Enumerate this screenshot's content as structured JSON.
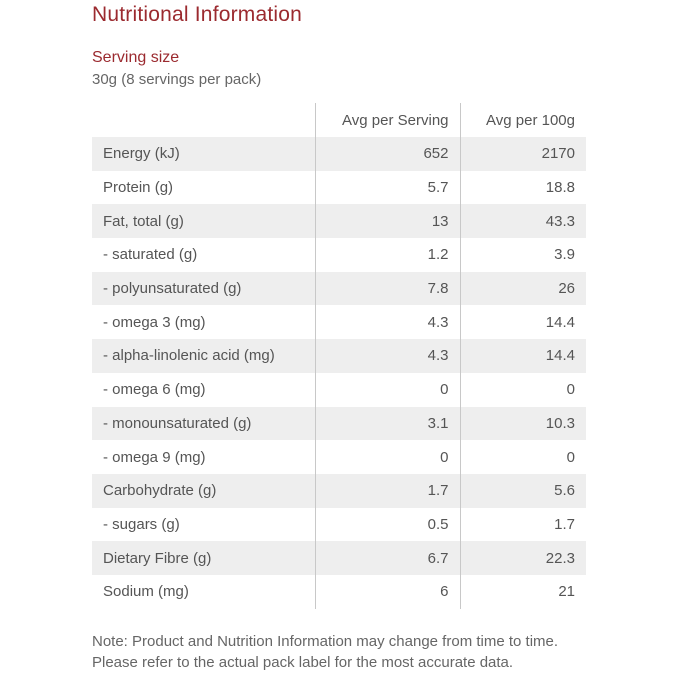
{
  "title": "Nutritional Information",
  "serving": {
    "heading": "Serving size",
    "value": "30g (8 servings per pack)"
  },
  "table": {
    "headers": [
      "",
      "Avg per Serving",
      "Avg per 100g"
    ],
    "rows": [
      {
        "nutrient": "Energy (kJ)",
        "per_serving": "652",
        "per_100g": "2170"
      },
      {
        "nutrient": "Protein (g)",
        "per_serving": "5.7",
        "per_100g": "18.8"
      },
      {
        "nutrient": "Fat, total (g)",
        "per_serving": "13",
        "per_100g": "43.3"
      },
      {
        "nutrient": "- saturated (g)",
        "per_serving": "1.2",
        "per_100g": "3.9"
      },
      {
        "nutrient": "- polyunsaturated (g)",
        "per_serving": "7.8",
        "per_100g": "26"
      },
      {
        "nutrient": "- omega 3 (mg)",
        "per_serving": "4.3",
        "per_100g": "14.4"
      },
      {
        "nutrient": "- alpha-linolenic acid (mg)",
        "per_serving": "4.3",
        "per_100g": "14.4"
      },
      {
        "nutrient": "- omega 6 (mg)",
        "per_serving": "0",
        "per_100g": "0"
      },
      {
        "nutrient": "- monounsaturated (g)",
        "per_serving": "3.1",
        "per_100g": "10.3"
      },
      {
        "nutrient": "- omega 9 (mg)",
        "per_serving": "0",
        "per_100g": "0"
      },
      {
        "nutrient": "Carbohydrate (g)",
        "per_serving": "1.7",
        "per_100g": "5.6"
      },
      {
        "nutrient": "- sugars (g)",
        "per_serving": "0.5",
        "per_100g": "1.7"
      },
      {
        "nutrient": "Dietary Fibre (g)",
        "per_serving": "6.7",
        "per_100g": "22.3"
      },
      {
        "nutrient": "Sodium (mg)",
        "per_serving": "6",
        "per_100g": "21"
      }
    ]
  },
  "note": "Note: Product and Nutrition Information may change from time to time. Please refer to the actual pack label for the most accurate data.",
  "colors": {
    "heading": "#9b2a2f",
    "row_shade": "#eeeeee",
    "divider": "#c8c8c8",
    "text": "#555555"
  }
}
